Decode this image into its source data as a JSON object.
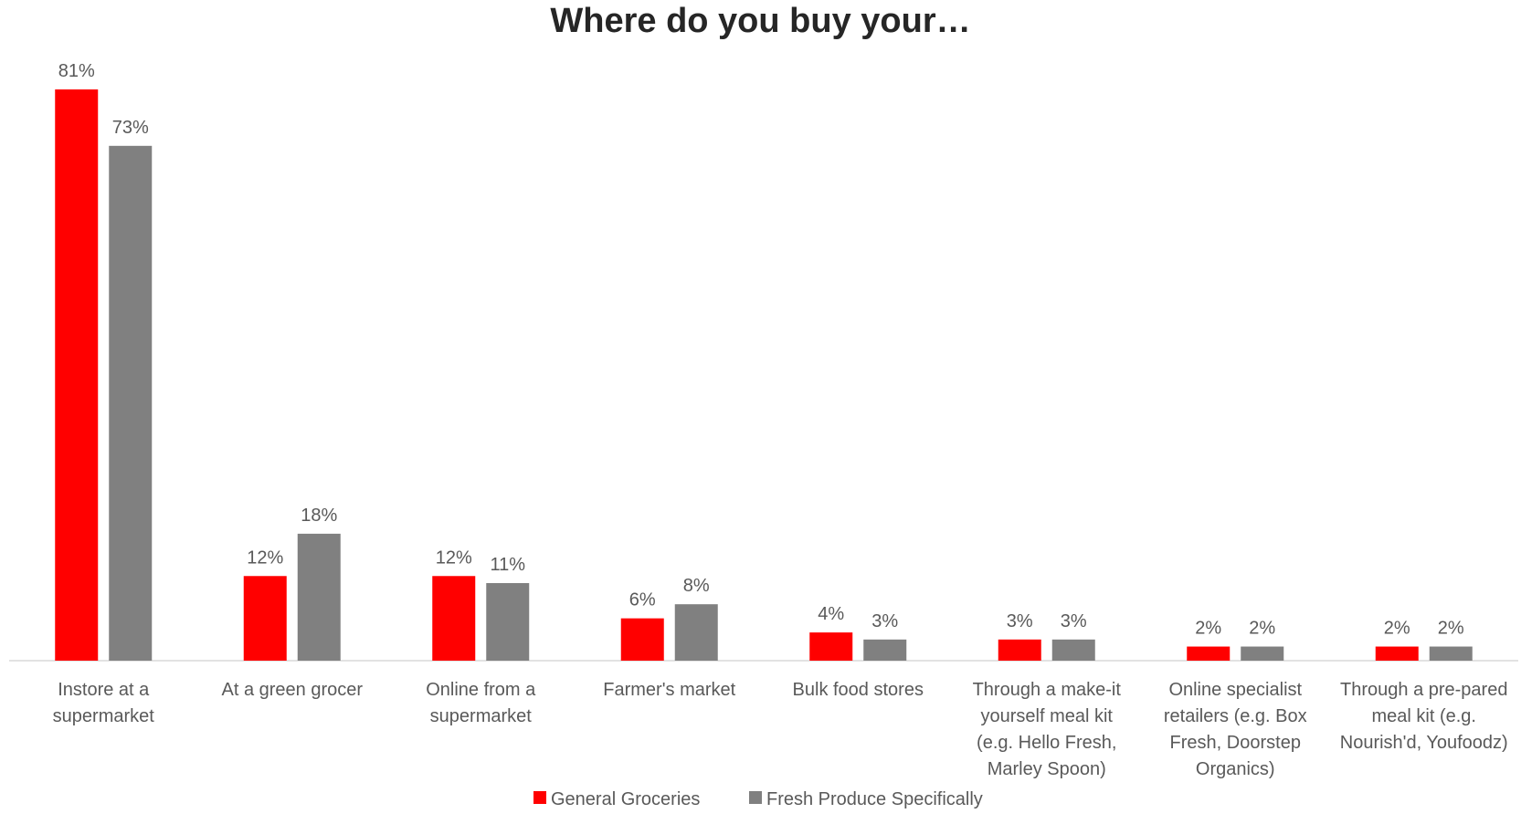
{
  "chart_data": {
    "type": "bar",
    "title": "Where do you buy your…",
    "categories": [
      [
        "Instore at a",
        "supermarket"
      ],
      [
        "At a green grocer"
      ],
      [
        "Online from a",
        "supermarket"
      ],
      [
        "Farmer's market"
      ],
      [
        "Bulk food stores"
      ],
      [
        "Through a make-it",
        "yourself meal kit",
        "(e.g. Hello Fresh,",
        "Marley Spoon)"
      ],
      [
        "Online specialist",
        "retailers (e.g. Box",
        "Fresh, Doorstep",
        "Organics)"
      ],
      [
        "Through a pre-pared",
        "meal kit (e.g.",
        "Nourish'd, Youfoodz)"
      ]
    ],
    "series": [
      {
        "name": "General Groceries",
        "color": "#ff0000",
        "values": [
          81,
          12,
          12,
          6,
          4,
          3,
          2,
          2
        ],
        "labels": [
          "81%",
          "12%",
          "12%",
          "6%",
          "4%",
          "3%",
          "2%",
          "2%"
        ]
      },
      {
        "name": "Fresh Produce Specifically",
        "color": "#808080",
        "values": [
          73,
          18,
          11,
          8,
          3,
          3,
          2,
          2
        ],
        "labels": [
          "73%",
          "18%",
          "11%",
          "8%",
          "3%",
          "3%",
          "2%",
          "2%"
        ]
      }
    ],
    "ylim": [
      0,
      81
    ],
    "grid": false,
    "legend_position": "bottom"
  }
}
